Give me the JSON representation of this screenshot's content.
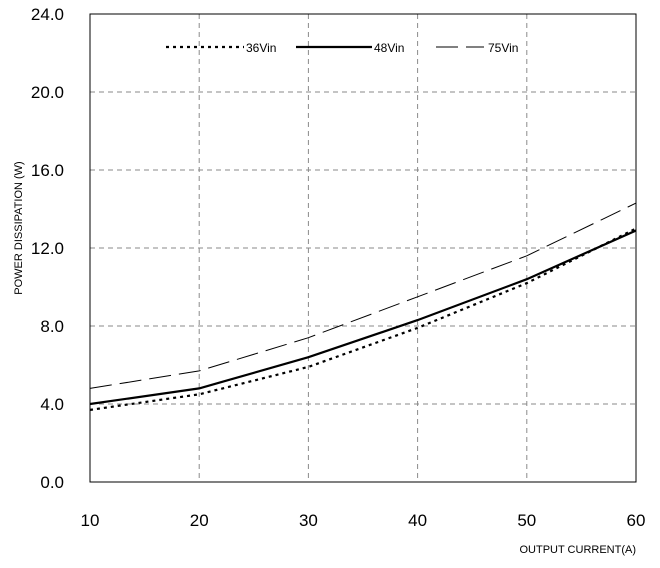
{
  "chart_data": {
    "type": "line",
    "title": "",
    "xlabel": "OUTPUT CURRENT(A)",
    "ylabel": "POWER DISSIPATION (W)",
    "xlim": [
      10,
      60
    ],
    "ylim": [
      0,
      24
    ],
    "x_ticks": [
      10,
      20,
      30,
      40,
      50,
      60
    ],
    "y_ticks": [
      0,
      4,
      8,
      12,
      16,
      20,
      24
    ],
    "x_tick_labels": [
      "10",
      "20",
      "30",
      "40",
      "50",
      "60"
    ],
    "y_tick_labels": [
      "0.0",
      "4.0",
      "8.0",
      "12.0",
      "16.0",
      "20.0",
      "24.0"
    ],
    "grid": true,
    "grid_style": "dashed",
    "legend_position": "top",
    "series": [
      {
        "name": "36Vin",
        "line_style": "dotted",
        "color": "#000000",
        "x": [
          10,
          20,
          30,
          40,
          50,
          60
        ],
        "y": [
          3.7,
          4.5,
          5.9,
          7.9,
          10.2,
          13.0
        ]
      },
      {
        "name": "48Vin",
        "line_style": "solid",
        "color": "#000000",
        "x": [
          10,
          20,
          30,
          40,
          50,
          60
        ],
        "y": [
          4.0,
          4.8,
          6.4,
          8.3,
          10.4,
          12.9
        ]
      },
      {
        "name": "75Vin",
        "line_style": "long-dash",
        "color": "#000000",
        "x": [
          10,
          20,
          30,
          40,
          50,
          60
        ],
        "y": [
          4.8,
          5.7,
          7.4,
          9.5,
          11.6,
          14.3
        ]
      }
    ]
  }
}
